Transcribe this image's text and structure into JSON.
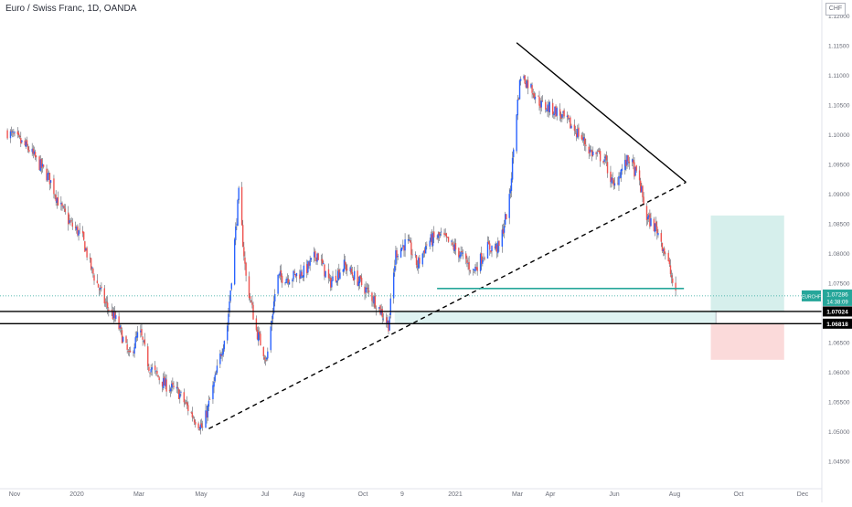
{
  "title": "Euro / Swiss Franc, 1D, OANDA",
  "currency": "CHF",
  "chart_data": {
    "type": "candlestick",
    "symbol": "EURCHF",
    "x_ticks": [
      "Nov",
      "2020",
      "Mar",
      "May",
      "Jul",
      "Aug",
      "Oct",
      "9",
      "2021",
      "Mar",
      "Apr",
      "Jun",
      "Aug",
      "Oct",
      "Dec"
    ],
    "y_ticks": [
      "1.12000",
      "1.11500",
      "1.11000",
      "1.10500",
      "1.10000",
      "1.09500",
      "1.09000",
      "1.08500",
      "1.08000",
      "1.07500",
      "1.07000",
      "1.06500",
      "1.06000",
      "1.05500",
      "1.05000",
      "1.04500"
    ],
    "ylim": [
      1.0445,
      1.1225
    ],
    "close_path": [
      [
        "2019-10-25",
        1.1005
      ],
      [
        "2019-11-05",
        1.099
      ],
      [
        "2019-11-15",
        1.0975
      ],
      [
        "2019-11-25",
        1.095
      ],
      [
        "2019-12-05",
        1.0925
      ],
      [
        "2019-12-15",
        1.088
      ],
      [
        "2019-12-25",
        1.085
      ],
      [
        "2020-01-05",
        1.083
      ],
      [
        "2020-01-15",
        1.077
      ],
      [
        "2020-01-28",
        1.0715
      ],
      [
        "2020-02-08",
        1.0685
      ],
      [
        "2020-02-20",
        1.0625
      ],
      [
        "2020-03-01",
        1.067
      ],
      [
        "2020-03-10",
        1.061
      ],
      [
        "2020-03-25",
        1.058
      ],
      [
        "2020-04-08",
        1.0565
      ],
      [
        "2020-04-20",
        1.053
      ],
      [
        "2020-05-01",
        1.0505
      ],
      [
        "2020-05-12",
        1.058
      ],
      [
        "2020-05-25",
        1.068
      ],
      [
        "2020-06-05",
        1.09
      ],
      [
        "2020-06-12",
        1.076
      ],
      [
        "2020-06-22",
        1.067
      ],
      [
        "2020-07-02",
        1.062
      ],
      [
        "2020-07-12",
        1.076
      ],
      [
        "2020-07-25",
        1.076
      ],
      [
        "2020-08-08",
        1.077
      ],
      [
        "2020-08-20",
        1.08
      ],
      [
        "2020-09-01",
        1.075
      ],
      [
        "2020-09-15",
        1.078
      ],
      [
        "2020-10-01",
        1.075
      ],
      [
        "2020-10-15",
        1.072
      ],
      [
        "2020-10-28",
        1.068
      ],
      [
        "2020-11-04",
        1.08
      ],
      [
        "2020-11-15",
        1.082
      ],
      [
        "2020-11-25",
        1.078
      ],
      [
        "2020-12-05",
        1.082
      ],
      [
        "2020-12-18",
        1.083
      ],
      [
        "2021-01-05",
        1.08
      ],
      [
        "2021-01-18",
        1.077
      ],
      [
        "2021-02-01",
        1.081
      ],
      [
        "2021-02-12",
        1.081
      ],
      [
        "2021-02-22",
        1.089
      ],
      [
        "2021-03-01",
        1.104
      ],
      [
        "2021-03-05",
        1.11
      ],
      [
        "2021-03-15",
        1.108
      ],
      [
        "2021-03-25",
        1.105
      ],
      [
        "2021-04-08",
        1.104
      ],
      [
        "2021-04-20",
        1.102
      ],
      [
        "2021-05-01",
        1.1
      ],
      [
        "2021-05-12",
        1.097
      ],
      [
        "2021-05-25",
        1.096
      ],
      [
        "2021-06-03",
        1.091
      ],
      [
        "2021-06-10",
        1.094
      ],
      [
        "2021-06-18",
        1.096
      ],
      [
        "2021-06-28",
        1.092
      ],
      [
        "2021-07-05",
        1.086
      ],
      [
        "2021-07-15",
        1.084
      ],
      [
        "2021-07-25",
        1.079
      ],
      [
        "2021-08-02",
        1.0728
      ]
    ],
    "shapes": {
      "descending_trendline": [
        [
          "2021-03-01",
          1.1155
        ],
        [
          "2021-08-12",
          1.092
        ]
      ],
      "ascending_trendline": [
        [
          "2020-05-07",
          1.0505
        ],
        [
          "2021-08-12",
          1.092
        ]
      ],
      "support_line": [
        [
          "2020-12-14",
          1.0741
        ],
        [
          "2021-08-10",
          1.0741
        ]
      ],
      "level_high": 1.07024,
      "level_low": 1.06818,
      "zone": [
        [
          "2020-11-03",
          "2021-09-10"
        ],
        [
          1.06818,
          1.07024
        ]
      ],
      "target_zone": [
        [
          "2021-09-05",
          "2021-11-15"
        ],
        [
          1.07024,
          1.0864
        ]
      ],
      "stop_zone": [
        [
          "2021-09-05",
          "2021-11-15"
        ],
        [
          1.0621,
          1.06818
        ]
      ]
    },
    "price_labels": {
      "current": {
        "ticker": "EURCHF",
        "price": "1.07286",
        "countdown": "14:38:09",
        "value": 1.07286
      },
      "level_high": "1.07024",
      "level_low": "1.06818"
    },
    "colors": {
      "up": "#2962ff",
      "down": "#ef5350",
      "wick": "#5d606b",
      "accent": "#26a69a",
      "target": "#d6efec",
      "stop": "#fbdada",
      "zone": "#dff3f2"
    }
  }
}
